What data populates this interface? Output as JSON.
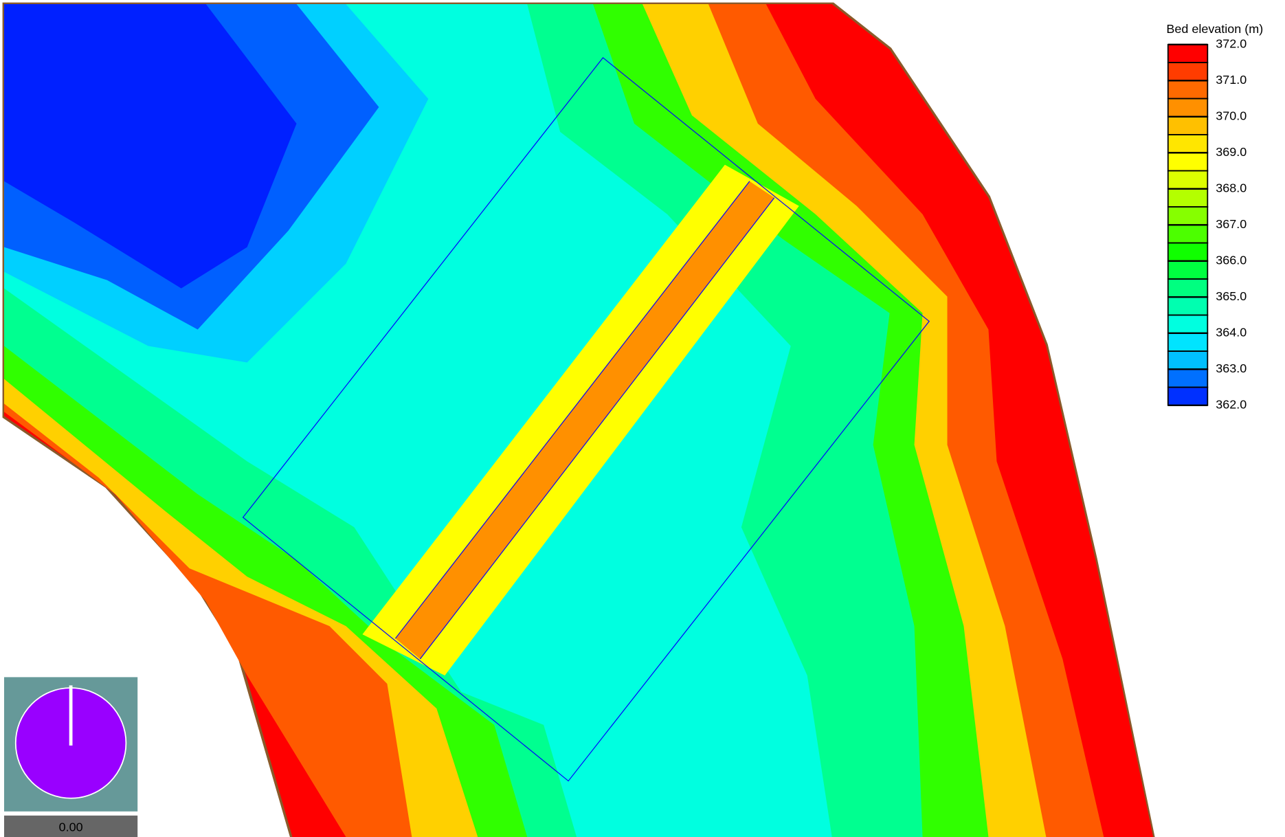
{
  "legend": {
    "title": "Bed elevation (m)",
    "ticks": [
      {
        "value": 372,
        "label": "372.0"
      },
      {
        "value": 371,
        "label": "371.0"
      },
      {
        "value": 370,
        "label": "370.0"
      },
      {
        "value": 369,
        "label": "369.0"
      },
      {
        "value": 368,
        "label": "368.0"
      },
      {
        "value": 367,
        "label": "367.0"
      },
      {
        "value": 366,
        "label": "366.0"
      },
      {
        "value": 365,
        "label": "365.0"
      },
      {
        "value": 364,
        "label": "364.0"
      },
      {
        "value": 363,
        "label": "363.0"
      },
      {
        "value": 362,
        "label": "362.0"
      }
    ],
    "colors": [
      "#ff0000",
      "#ff3c00",
      "#ff6a00",
      "#ff9000",
      "#ffc000",
      "#ffe600",
      "#ffff00",
      "#ddff00",
      "#b4ff00",
      "#86ff00",
      "#4cff00",
      "#10ff00",
      "#00ff40",
      "#00ff80",
      "#00ffb0",
      "#00ffe0",
      "#00e4ff",
      "#00c0ff",
      "#0070ff",
      "#0030ff"
    ]
  },
  "time_label": "0.00"
}
